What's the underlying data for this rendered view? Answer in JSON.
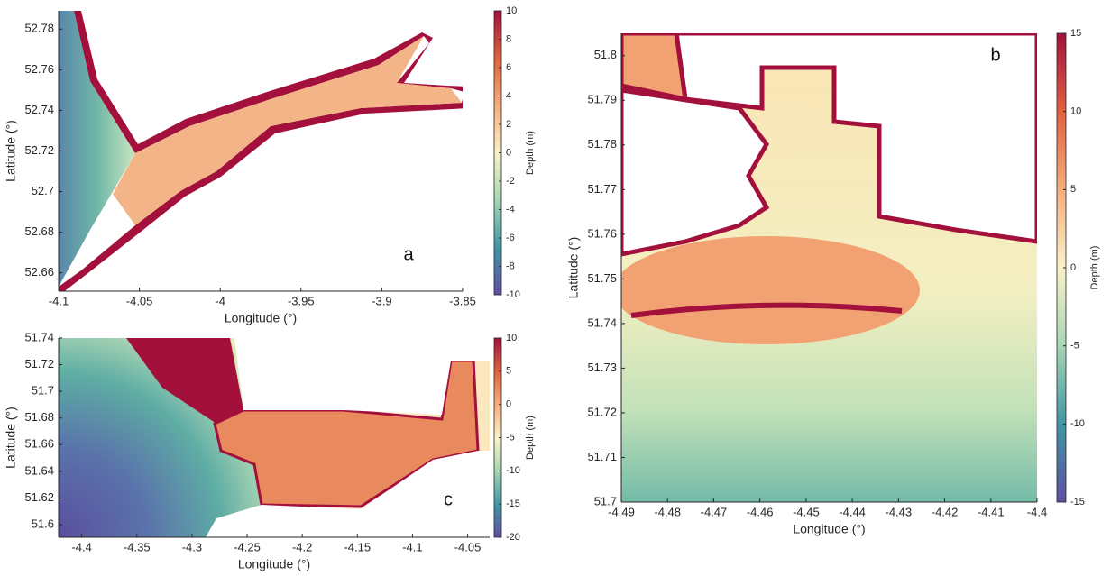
{
  "chart_data": [
    {
      "type": "heatmap",
      "panel_label": "a",
      "x_label": "Longitude (°)",
      "y_label": "Latitude (°)",
      "colorbar_label": "Depth (m)",
      "xlim": [
        -4.1,
        -3.85
      ],
      "xticks": [
        -4.1,
        -4.05,
        -4,
        -3.95,
        -3.9,
        -3.85
      ],
      "ylim": [
        52.651,
        52.789
      ],
      "yticks": [
        52.66,
        52.68,
        52.7,
        52.72,
        52.74,
        52.76,
        52.78
      ],
      "clim": [
        -10,
        10
      ],
      "cticks": [
        -10,
        -8,
        -6,
        -4,
        -2,
        0,
        2,
        4,
        6,
        8,
        10
      ],
      "colormap": [
        "#5e4fa2",
        "#3f96a4",
        "#a6d6b4",
        "#fbf2c8",
        "#f6ad7c",
        "#e2603f",
        "#a3103c"
      ]
    },
    {
      "type": "heatmap",
      "panel_label": "b",
      "x_label": "Longitude (°)",
      "y_label": "Latitude (°)",
      "colorbar_label": "Depth (m)",
      "xlim": [
        -4.49,
        -4.4
      ],
      "xticks": [
        -4.49,
        -4.48,
        -4.47,
        -4.46,
        -4.45,
        -4.44,
        -4.43,
        -4.42,
        -4.41,
        -4.4
      ],
      "ylim": [
        51.7,
        51.805
      ],
      "yticks": [
        51.7,
        51.71,
        51.72,
        51.73,
        51.74,
        51.75,
        51.76,
        51.77,
        51.78,
        51.79,
        51.8
      ],
      "clim": [
        -15,
        15
      ],
      "cticks": [
        -15,
        -10,
        -5,
        0,
        5,
        10,
        15
      ],
      "colormap": [
        "#5e4fa2",
        "#3f96a4",
        "#a6d6b4",
        "#fbf2c8",
        "#f6ad7c",
        "#e2603f",
        "#a3103c"
      ]
    },
    {
      "type": "heatmap",
      "panel_label": "c",
      "x_label": "Longitude (°)",
      "y_label": "Latitude (°)",
      "colorbar_label": "Depth (m)",
      "xlim": [
        -4.421,
        -4.03
      ],
      "xticks": [
        -4.4,
        -4.35,
        -4.3,
        -4.25,
        -4.2,
        -4.15,
        -4.1,
        -4.05
      ],
      "ylim": [
        51.5905,
        51.74
      ],
      "yticks": [
        51.6,
        51.62,
        51.64,
        51.66,
        51.68,
        51.7,
        51.72,
        51.74
      ],
      "clim": [
        -20,
        10
      ],
      "cticks": [
        -20,
        -15,
        -10,
        -5,
        0,
        5,
        10
      ],
      "colormap": [
        "#5e4fa2",
        "#3f96a4",
        "#a6d6b4",
        "#fbf2c8",
        "#f6ad7c",
        "#e2603f",
        "#a3103c"
      ]
    }
  ]
}
